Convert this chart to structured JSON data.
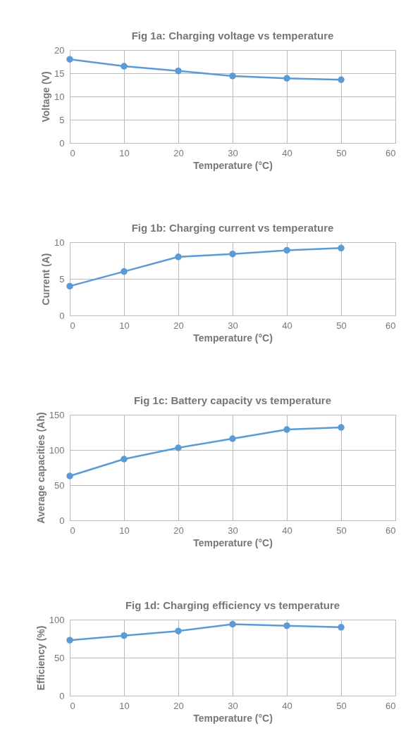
{
  "chart_data": [
    {
      "type": "line",
      "title": "Fig 1a: Charging voltage vs temperature",
      "xlabel": "Temperature (°C)",
      "ylabel": "Voltage (V)",
      "x": [
        0,
        10,
        20,
        30,
        40,
        50
      ],
      "series": [
        {
          "color": "#5b9bd5",
          "values": [
            18,
            16.5,
            15.5,
            14.4,
            13.9,
            13.6
          ]
        }
      ],
      "xlim": [
        0,
        60
      ],
      "xticks": [
        0,
        10,
        20,
        30,
        40,
        50,
        60
      ],
      "ylim": [
        0,
        20
      ],
      "yticks": [
        0,
        5,
        10,
        15,
        20
      ],
      "grid": true,
      "marker": "circle"
    },
    {
      "type": "line",
      "title": "Fig 1b: Charging current vs temperature",
      "xlabel": "Temperature (°C)",
      "ylabel": "Current (A)",
      "x": [
        0,
        10,
        20,
        30,
        40,
        50
      ],
      "series": [
        {
          "color": "#5b9bd5",
          "values": [
            4,
            6,
            8,
            8.4,
            8.9,
            9.2
          ]
        }
      ],
      "xlim": [
        0,
        60
      ],
      "xticks": [
        0,
        10,
        20,
        30,
        40,
        50,
        60
      ],
      "ylim": [
        0,
        10
      ],
      "yticks": [
        0,
        5,
        10
      ],
      "grid": true,
      "marker": "circle"
    },
    {
      "type": "line",
      "title": "Fig 1c: Battery capacity vs temperature",
      "xlabel": "Temperature (°C)",
      "ylabel": "Average capacities (Ah)",
      "x": [
        0,
        10,
        20,
        30,
        40,
        50
      ],
      "series": [
        {
          "color": "#5b9bd5",
          "values": [
            63,
            87,
            103,
            116,
            129,
            132
          ]
        }
      ],
      "xlim": [
        0,
        60
      ],
      "xticks": [
        0,
        10,
        20,
        30,
        40,
        50,
        60
      ],
      "ylim": [
        0,
        150
      ],
      "yticks": [
        0,
        50,
        100,
        150
      ],
      "grid": true,
      "marker": "circle"
    },
    {
      "type": "line",
      "title": "Fig 1d: Charging efficiency vs temperature",
      "xlabel": "Temperature (°C)",
      "ylabel": "Efficiency (%)",
      "x": [
        0,
        10,
        20,
        30,
        40,
        50
      ],
      "series": [
        {
          "color": "#5b9bd5",
          "values": [
            73,
            79,
            85,
            94,
            92,
            90
          ]
        }
      ],
      "xlim": [
        0,
        60
      ],
      "xticks": [
        0,
        10,
        20,
        30,
        40,
        50,
        60
      ],
      "ylim": [
        0,
        100
      ],
      "yticks": [
        0,
        50,
        100
      ],
      "grid": true,
      "marker": "circle"
    }
  ]
}
